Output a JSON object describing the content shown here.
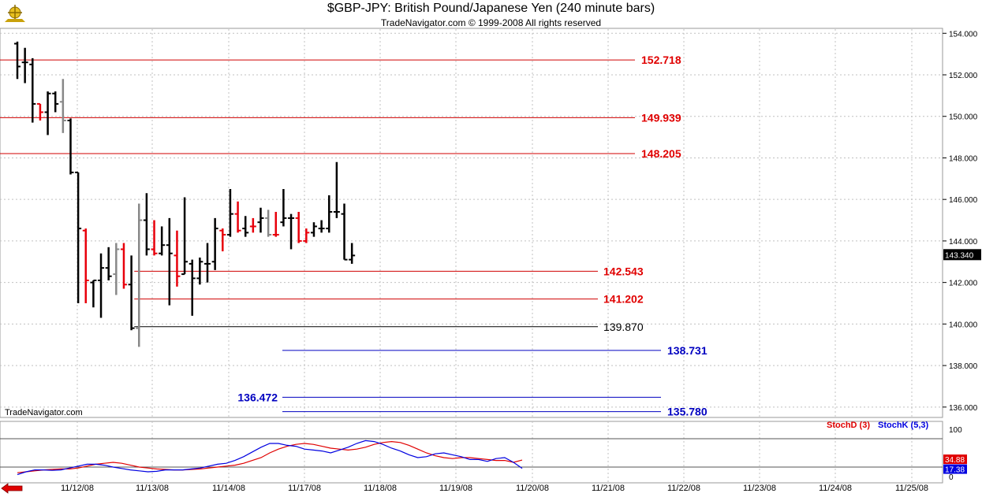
{
  "header": {
    "title": "$GBP-JPY:  British Pound/Japanese Yen  (240 minute bars)",
    "subtitle": "TradeNavigator.com © 1999-2008 All rights reserved",
    "watermark": "TradeNavigator.com"
  },
  "colors": {
    "up": "#000000",
    "down": "#e8000b",
    "neutral": "#888888",
    "grid": "#c0c0c0",
    "level_red": "#d00000",
    "level_black": "#000000",
    "level_blue": "#0000c0",
    "stoch_d": "#e00000",
    "stoch_k": "#0000e0"
  },
  "chart_data": {
    "type": "bar",
    "price_axis": {
      "ylim": [
        135.5,
        154.2
      ],
      "ticks": [
        "154.000",
        "152.000",
        "150.000",
        "148.000",
        "146.000",
        "144.000",
        "142.000",
        "140.000",
        "138.000",
        "136.000"
      ],
      "tick_values": [
        154,
        152,
        150,
        148,
        146,
        144,
        142,
        140,
        138,
        136
      ]
    },
    "last_price": "143.340",
    "x_labels": [
      "11/12/08",
      "11/13/08",
      "11/14/08",
      "11/17/08",
      "11/18/08",
      "11/19/08",
      "11/20/08",
      "11/21/08",
      "11/22/08",
      "11/23/08",
      "11/24/08",
      "11/25/08"
    ],
    "bars": [
      {
        "o": 153.5,
        "h": 153.6,
        "l": 151.8,
        "c": 152.4,
        "col": "up"
      },
      {
        "o": 152.6,
        "h": 153.3,
        "l": 151.6,
        "c": 152.6,
        "col": "up"
      },
      {
        "o": 152.5,
        "h": 152.8,
        "l": 149.7,
        "c": 150.6,
        "col": "up"
      },
      {
        "o": 150.6,
        "h": 150.6,
        "l": 149.8,
        "c": 150.2,
        "col": "down"
      },
      {
        "o": 150.2,
        "h": 151.2,
        "l": 149.1,
        "c": 151.1,
        "col": "up"
      },
      {
        "o": 151.1,
        "h": 151.2,
        "l": 150.2,
        "c": 150.6,
        "col": "up"
      },
      {
        "o": 150.7,
        "h": 151.8,
        "l": 149.2,
        "c": 149.8,
        "col": "neutral"
      },
      {
        "o": 149.8,
        "h": 149.9,
        "l": 147.2,
        "c": 147.3,
        "col": "up"
      },
      {
        "o": 147.3,
        "h": 147.3,
        "l": 141.0,
        "c": 144.6,
        "col": "up"
      },
      {
        "o": 144.5,
        "h": 144.6,
        "l": 141.0,
        "c": 142.1,
        "col": "down"
      },
      {
        "o": 142.0,
        "h": 142.1,
        "l": 140.8,
        "c": 142.1,
        "col": "up"
      },
      {
        "o": 142.1,
        "h": 143.4,
        "l": 140.3,
        "c": 142.7,
        "col": "up"
      },
      {
        "o": 142.7,
        "h": 143.7,
        "l": 142.1,
        "c": 142.3,
        "col": "up"
      },
      {
        "o": 142.4,
        "h": 143.9,
        "l": 141.4,
        "c": 143.6,
        "col": "neutral"
      },
      {
        "o": 143.6,
        "h": 143.9,
        "l": 141.7,
        "c": 141.9,
        "col": "down"
      },
      {
        "o": 141.9,
        "h": 143.3,
        "l": 139.7,
        "c": 139.8,
        "col": "up"
      },
      {
        "o": 139.8,
        "h": 145.8,
        "l": 138.9,
        "c": 145.0,
        "col": "neutral"
      },
      {
        "o": 145.0,
        "h": 146.3,
        "l": 143.3,
        "c": 143.6,
        "col": "up"
      },
      {
        "o": 143.6,
        "h": 145.0,
        "l": 143.3,
        "c": 143.4,
        "col": "down"
      },
      {
        "o": 143.4,
        "h": 144.7,
        "l": 143.3,
        "c": 143.8,
        "col": "up"
      },
      {
        "o": 143.8,
        "h": 145.1,
        "l": 140.9,
        "c": 143.4,
        "col": "up"
      },
      {
        "o": 143.3,
        "h": 144.5,
        "l": 141.8,
        "c": 142.3,
        "col": "down"
      },
      {
        "o": 142.4,
        "h": 146.1,
        "l": 142.4,
        "c": 143.0,
        "col": "up"
      },
      {
        "o": 142.9,
        "h": 143.1,
        "l": 140.4,
        "c": 142.2,
        "col": "up"
      },
      {
        "o": 142.2,
        "h": 143.2,
        "l": 141.9,
        "c": 143.0,
        "col": "up"
      },
      {
        "o": 142.9,
        "h": 143.9,
        "l": 142.0,
        "c": 142.9,
        "col": "up"
      },
      {
        "o": 143.0,
        "h": 145.1,
        "l": 142.6,
        "c": 144.6,
        "col": "up"
      },
      {
        "o": 144.5,
        "h": 144.6,
        "l": 143.5,
        "c": 144.3,
        "col": "down"
      },
      {
        "o": 144.3,
        "h": 146.5,
        "l": 144.2,
        "c": 145.3,
        "col": "up"
      },
      {
        "o": 145.3,
        "h": 145.9,
        "l": 144.4,
        "c": 144.5,
        "col": "down"
      },
      {
        "o": 144.6,
        "h": 145.2,
        "l": 144.2,
        "c": 144.4,
        "col": "up"
      },
      {
        "o": 144.7,
        "h": 145.1,
        "l": 144.4,
        "c": 144.7,
        "col": "down"
      },
      {
        "o": 144.9,
        "h": 145.6,
        "l": 144.4,
        "c": 145.1,
        "col": "up"
      },
      {
        "o": 145.1,
        "h": 145.5,
        "l": 144.2,
        "c": 144.3,
        "col": "neutral"
      },
      {
        "o": 144.3,
        "h": 145.4,
        "l": 144.2,
        "c": 144.3,
        "col": "down"
      },
      {
        "o": 144.9,
        "h": 146.5,
        "l": 144.7,
        "c": 145.1,
        "col": "up"
      },
      {
        "o": 145.1,
        "h": 145.3,
        "l": 143.6,
        "c": 145.1,
        "col": "up"
      },
      {
        "o": 145.1,
        "h": 145.4,
        "l": 143.9,
        "c": 144.0,
        "col": "down"
      },
      {
        "o": 144.0,
        "h": 144.6,
        "l": 143.9,
        "c": 144.4,
        "col": "down"
      },
      {
        "o": 144.4,
        "h": 144.9,
        "l": 144.2,
        "c": 144.7,
        "col": "up"
      },
      {
        "o": 144.6,
        "h": 145.0,
        "l": 144.4,
        "c": 144.6,
        "col": "up"
      },
      {
        "o": 144.6,
        "h": 146.2,
        "l": 144.4,
        "c": 145.4,
        "col": "up"
      },
      {
        "o": 145.4,
        "h": 147.8,
        "l": 145.1,
        "c": 145.4,
        "col": "up"
      },
      {
        "o": 145.3,
        "h": 145.8,
        "l": 143.1,
        "c": 143.1,
        "col": "up"
      },
      {
        "o": 143.1,
        "h": 143.9,
        "l": 142.9,
        "c": 143.3,
        "col": "up"
      }
    ],
    "levels": [
      {
        "label": "152.718",
        "value": 152.718,
        "color": "red",
        "start": 0,
        "end": 44
      },
      {
        "label": "149.939",
        "value": 149.939,
        "color": "red",
        "start": 0,
        "end": 44
      },
      {
        "label": "148.205",
        "value": 148.205,
        "color": "red",
        "start": 0,
        "end": 44
      },
      {
        "label": "142.543",
        "value": 142.543,
        "color": "red",
        "start": 16,
        "end": 42
      },
      {
        "label": "141.202",
        "value": 141.202,
        "color": "red",
        "start": 16,
        "end": 42
      },
      {
        "label": "139.870",
        "value": 139.87,
        "color": "black",
        "start": 16,
        "end": 42
      },
      {
        "label": "138.731",
        "value": 138.731,
        "color": "blue",
        "start": 21,
        "end": 46
      },
      {
        "label": "136.472",
        "value": 136.472,
        "color": "blue",
        "start": 21,
        "end": 46
      },
      {
        "label": "135.780",
        "value": 135.78,
        "color": "blue",
        "start": 21,
        "end": 46
      }
    ],
    "stochastic": {
      "legend_d": "StochD (3)",
      "legend_k": "StochK (5,3)",
      "ylim": [
        0,
        100
      ],
      "tick_labels": [
        "100",
        "0"
      ],
      "tick_values": [
        100,
        0
      ],
      "reference_lines": [
        80,
        20
      ],
      "last_d": "34.88",
      "last_k": "17.38",
      "d_values": [
        8,
        10,
        12,
        14,
        15,
        16,
        16,
        18,
        22,
        26,
        28,
        30,
        28,
        24,
        20,
        18,
        16,
        15,
        14,
        14,
        15,
        16,
        18,
        20,
        22,
        24,
        28,
        34,
        40,
        50,
        58,
        64,
        68,
        70,
        68,
        64,
        60,
        58,
        56,
        58,
        62,
        68,
        72,
        74,
        72,
        66,
        58,
        50,
        44,
        40,
        38,
        40,
        40,
        38,
        36,
        34,
        34,
        30,
        34.88
      ],
      "k_values": [
        4,
        10,
        14,
        14,
        13,
        14,
        18,
        22,
        26,
        26,
        24,
        20,
        17,
        14,
        12,
        10,
        11,
        14,
        14,
        14,
        16,
        18,
        22,
        26,
        28,
        34,
        42,
        52,
        62,
        70,
        70,
        66,
        64,
        58,
        56,
        54,
        50,
        56,
        62,
        70,
        76,
        74,
        68,
        60,
        54,
        46,
        40,
        42,
        48,
        50,
        46,
        42,
        36,
        36,
        32,
        38,
        40,
        30,
        17.38
      ]
    }
  }
}
